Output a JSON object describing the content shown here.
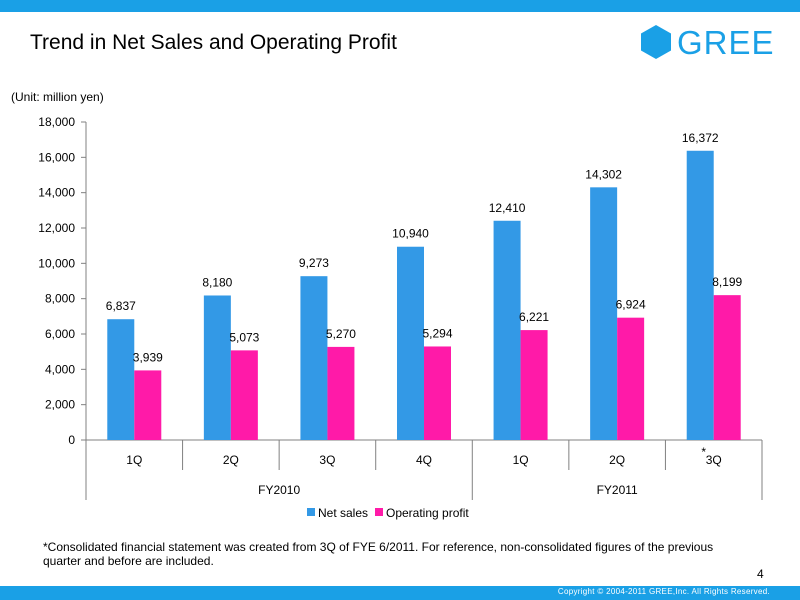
{
  "header": {
    "title": "Trend in Net Sales and Operating Profit",
    "logo_text": "GREE",
    "brand_color": "#1aa0e6"
  },
  "unit_label": "(Unit: million yen)",
  "chart_data": {
    "type": "bar",
    "categories": [
      "1Q",
      "2Q",
      "3Q",
      "4Q",
      "1Q",
      "2Q",
      "3Q"
    ],
    "category_marks": [
      "",
      "",
      "",
      "",
      "",
      "",
      "*"
    ],
    "groups": [
      {
        "label": "FY2010",
        "span": 4
      },
      {
        "label": "FY2011",
        "span": 3
      }
    ],
    "series": [
      {
        "name": "Net sales",
        "color": "#3399e6",
        "values": [
          6837,
          8180,
          9273,
          10940,
          12410,
          14302,
          16372
        ],
        "labels": [
          "6,837",
          "8,180",
          "9,273",
          "10,940",
          "12,410",
          "14,302",
          "16,372"
        ]
      },
      {
        "name": "Operating profit",
        "color": "#ff1aa8",
        "values": [
          3939,
          5073,
          5270,
          5294,
          6221,
          6924,
          8199
        ],
        "labels": [
          "3,939",
          "5,073",
          "5,270",
          "5,294",
          "6,221",
          "6,924",
          "8,199"
        ]
      }
    ],
    "ylim": [
      0,
      18000
    ],
    "yticks": [
      0,
      2000,
      4000,
      6000,
      8000,
      10000,
      12000,
      14000,
      16000,
      18000
    ],
    "ytick_labels": [
      "0",
      "2,000",
      "4,000",
      "6,000",
      "8,000",
      "10,000",
      "12,000",
      "14,000",
      "16,000",
      "18,000"
    ],
    "grid": false,
    "legend_position": "bottom-center"
  },
  "footnote": "*Consolidated financial statement was created from 3Q of FYE 6/2011. For reference, non-consolidated figures of the previous quarter and before are included.",
  "page_number": "4",
  "copyright": "Copyright © 2004-2011 GREE,Inc. All Rights Reserved."
}
